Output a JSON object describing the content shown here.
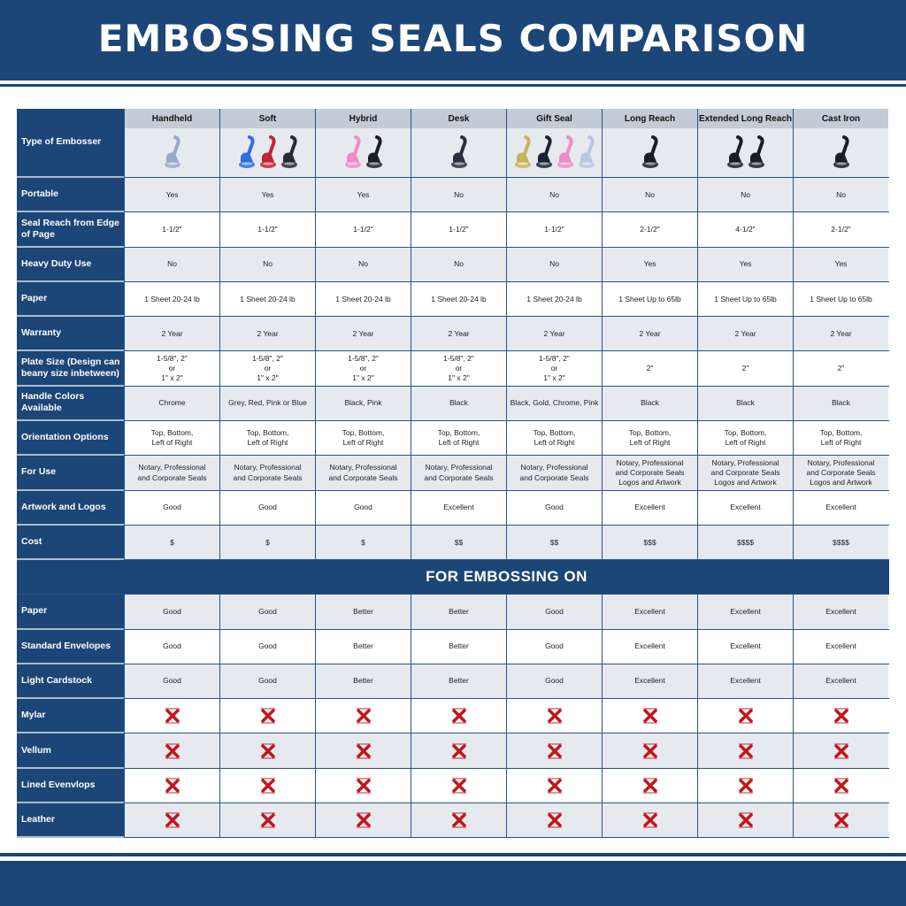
{
  "title": "EMBOSSING SEALS COMPARISON",
  "colors": {
    "brand": "#1b4677",
    "header_band": "#c3ccd6",
    "row_light": "#e6eaef",
    "x_mark": "#c0161c"
  },
  "header": {
    "label": "Type of Embosser",
    "columns": [
      {
        "name": "Handheld",
        "image_colors": [
          "#9aa9c9"
        ]
      },
      {
        "name": "Soft",
        "image_colors": [
          "#2f6fe0",
          "#c0243a",
          "#2a2a35"
        ]
      },
      {
        "name": "Hybrid",
        "image_colors": [
          "#f08bc8",
          "#1e1e24"
        ]
      },
      {
        "name": "Desk",
        "image_colors": [
          "#2a2f3f"
        ]
      },
      {
        "name": "Gift Seal",
        "image_colors": [
          "#c9b35a",
          "#1e2236",
          "#f08bc8",
          "#b8c6e4"
        ]
      },
      {
        "name": "Long Reach",
        "image_colors": [
          "#1a1c26"
        ]
      },
      {
        "name": "Extended Long Reach",
        "image_colors": [
          "#1a1c26",
          "#1a1c26"
        ]
      },
      {
        "name": "Cast Iron",
        "image_colors": [
          "#1a1c26"
        ]
      }
    ]
  },
  "rows": [
    {
      "label": "Portable",
      "values": [
        "Yes",
        "Yes",
        "Yes",
        "No",
        "No",
        "No",
        "No",
        "No"
      ]
    },
    {
      "label": "Seal Reach from Edge of Page",
      "values": [
        "1-1/2\"",
        "1-1/2\"",
        "1-1/2\"",
        "1-1/2\"",
        "1-1/2\"",
        "2-1/2\"",
        "4-1/2\"",
        "2-1/2\""
      ]
    },
    {
      "label": "Heavy Duty Use",
      "values": [
        "No",
        "No",
        "No",
        "No",
        "No",
        "Yes",
        "Yes",
        "Yes"
      ]
    },
    {
      "label": "Paper",
      "values": [
        "1 Sheet 20-24 lb",
        "1 Sheet 20-24 lb",
        "1 Sheet 20-24 lb",
        "1 Sheet 20-24 lb",
        "1 Sheet 20-24 lb",
        "1 Sheet Up to 65lb",
        "1 Sheet Up to 65lb",
        "1 Sheet Up to 65lb"
      ]
    },
    {
      "label": "Warranty",
      "values": [
        "2 Year",
        "2 Year",
        "2 Year",
        "2 Year",
        "2 Year",
        "2 Year",
        "2 Year",
        "2 Year"
      ]
    },
    {
      "label": "Plate Size (Design can beany size inbetween)",
      "values": [
        "1-5/8\", 2\"\nor\n1\" x 2\"",
        "1-5/8\", 2\"\nor\n1\" x 2\"",
        "1-5/8\", 2\"\nor\n1\" x 2\"",
        "1-5/8\", 2\"\nor\n1\" x 2\"",
        "1-5/8\", 2\"\nor\n1\" x 2\"",
        "2\"",
        "2\"",
        "2\""
      ]
    },
    {
      "label": "Handle Colors Available",
      "values": [
        "Chrome",
        "Grey, Red, Pink or Blue",
        "Black, Pink",
        "Black",
        "Black, Gold, Chrome, Pink",
        "Black",
        "Black",
        "Black"
      ]
    },
    {
      "label": "Orientation Options",
      "values": [
        "Top, Bottom,\nLeft of Right",
        "Top, Bottom,\nLeft of Right",
        "Top, Bottom,\nLeft of Right",
        "Top, Bottom,\nLeft of Right",
        "Top, Bottom,\nLeft of Right",
        "Top, Bottom,\nLeft of Right",
        "Top, Bottom,\nLeft of Right",
        "Top, Bottom,\nLeft of Right"
      ]
    },
    {
      "label": "For Use",
      "values": [
        "Notary, Professional\nand Corporate Seals",
        "Notary, Professional\nand Corporate Seals",
        "Notary, Professional\nand Corporate Seals",
        "Notary, Professional\nand Corporate Seals",
        "Notary, Professional\nand Corporate Seals",
        "Notary, Professional\nand Corporate Seals\nLogos and Artwork",
        "Notary, Professional\nand Corporate Seals\nLogos and Artwork",
        "Notary, Professional\nand Corporate Seals\nLogos and Artwork"
      ]
    },
    {
      "label": "Artwork and Logos",
      "values": [
        "Good",
        "Good",
        "Good",
        "Excellent",
        "Good",
        "Excellent",
        "Excellent",
        "Excellent"
      ]
    },
    {
      "label": "Cost",
      "values": [
        "$",
        "$",
        "$",
        "$$",
        "$$",
        "$$$",
        "$$$$",
        "$$$$"
      ]
    }
  ],
  "section": {
    "title": "FOR EMBOSSING ON",
    "rows": [
      {
        "label": "Paper",
        "values": [
          "Good",
          "Good",
          "Better",
          "Better",
          "Good",
          "Excellent",
          "Excellent",
          "Excellent"
        ]
      },
      {
        "label": "Standard Envelopes",
        "values": [
          "Good",
          "Good",
          "Better",
          "Better",
          "Good",
          "Excellent",
          "Excellent",
          "Excellent"
        ]
      },
      {
        "label": "Light Cardstock",
        "values": [
          "Good",
          "Good",
          "Better",
          "Better",
          "Good",
          "Excellent",
          "Excellent",
          "Excellent"
        ]
      },
      {
        "label": "Mylar",
        "values": [
          "x-icon",
          "x-icon",
          "x-icon",
          "x-icon",
          "x-icon",
          "x-icon",
          "x-icon",
          "x-icon"
        ]
      },
      {
        "label": "Vellum",
        "values": [
          "x-icon",
          "x-icon",
          "x-icon",
          "x-icon",
          "x-icon",
          "x-icon",
          "x-icon",
          "x-icon"
        ]
      },
      {
        "label": "Lined Evenvlops",
        "values": [
          "x-icon",
          "x-icon",
          "x-icon",
          "x-icon",
          "x-icon",
          "x-icon",
          "x-icon",
          "x-icon"
        ]
      },
      {
        "label": "Leather",
        "values": [
          "x-icon",
          "x-icon",
          "x-icon",
          "x-icon",
          "x-icon",
          "x-icon",
          "x-icon",
          "x-icon"
        ]
      }
    ]
  }
}
